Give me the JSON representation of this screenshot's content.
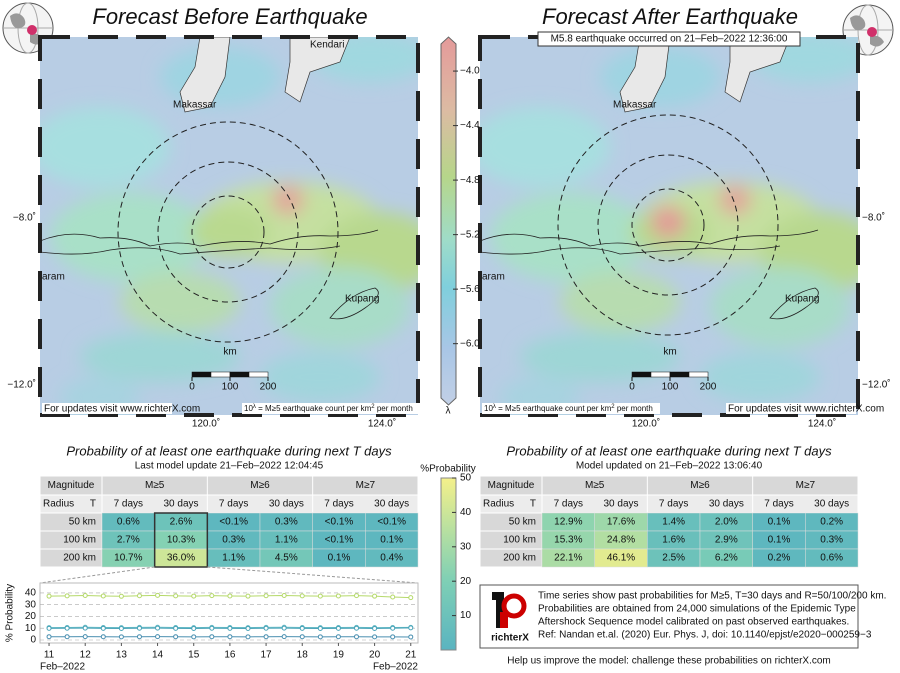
{
  "left_map": {
    "title": "Forecast Before Earthquake",
    "places": [
      "Kendari",
      "Makassar",
      "aram",
      "Kupang"
    ],
    "scale_unit": "km",
    "scale_ticks": [
      0,
      100,
      200
    ],
    "lat_ticks": [
      "−8.0˚",
      "−12.0˚"
    ],
    "lon_ticks": [
      "120.0˚",
      "124.0˚"
    ],
    "url_note": "For updates visit www.richterX.com",
    "formula": [
      "10",
      "λ",
      " = M≥5 earthquake count per km",
      "2",
      " per month"
    ]
  },
  "right_map": {
    "title": "Forecast After Earthquake",
    "banner": "M5.8 earthquake occurred on 21–Feb–2022 12:36:00",
    "places": [
      "Makassar",
      "aram",
      "Kupang"
    ],
    "scale_unit": "km",
    "scale_ticks": [
      0,
      100,
      200
    ],
    "lat_ticks": [
      "−8.0˚",
      "−12.0˚"
    ],
    "lon_ticks": [
      "120.0˚",
      "124.0˚"
    ],
    "url_note": "For updates visit www.richterX.com",
    "formula": [
      "10",
      "λ",
      " = M≥5 earthquake count per km",
      "2",
      " per month"
    ]
  },
  "lambda_colorbar": {
    "label": "λ",
    "range": [
      -6.45,
      -3.75
    ],
    "ticks": [
      {
        "value": -4,
        "label": "−4.0"
      },
      {
        "value": -4.4,
        "label": "−4.4"
      },
      {
        "value": -4.8,
        "label": "−4.8"
      },
      {
        "value": -5.2,
        "label": "−5.2"
      },
      {
        "value": -5.6,
        "label": "−5.6"
      },
      {
        "value": -6,
        "label": "−6.0"
      }
    ]
  },
  "prob_colorbar": {
    "label": "%Probability",
    "range": [
      0,
      50
    ],
    "ticks": [
      10,
      20,
      30,
      40,
      50
    ]
  },
  "left_table": {
    "title": "Probability of at least one earthquake during next T days",
    "subtitle": "Last model update 21–Feb–2022 12:04:45",
    "header": [
      "Magnitude",
      "M≥5",
      "M≥6",
      "M≥7"
    ],
    "subheader": [
      "Radius",
      "T",
      "7 days",
      "30 days",
      "7 days",
      "30 days",
      "7 days",
      "30 days"
    ],
    "rows": [
      [
        "50 km",
        "0.6%",
        "2.6%",
        "<0.1%",
        "0.3%",
        "<0.1%",
        "<0.1%"
      ],
      [
        "100 km",
        "2.7%",
        "10.3%",
        "0.3%",
        "1.1%",
        "<0.1%",
        "0.1%"
      ],
      [
        "200 km",
        "10.7%",
        "36.0%",
        "1.1%",
        "4.5%",
        "0.1%",
        "0.4%"
      ]
    ]
  },
  "right_table": {
    "title": "Probability of at least one earthquake during next T days",
    "subtitle": "Model updated on 21–Feb–2022 13:06:40",
    "header": [
      "Magnitude",
      "M≥5",
      "M≥6",
      "M≥7"
    ],
    "subheader": [
      "Radius",
      "T",
      "7 days",
      "30 days",
      "7 days",
      "30 days",
      "7 days",
      "30 days"
    ],
    "rows": [
      [
        "50 km",
        "12.9%",
        "17.6%",
        "1.4%",
        "2.0%",
        "0.1%",
        "0.2%"
      ],
      [
        "100 km",
        "15.3%",
        "24.8%",
        "1.6%",
        "2.9%",
        "0.1%",
        "0.3%"
      ],
      [
        "200 km",
        "22.1%",
        "46.1%",
        "2.5%",
        "6.2%",
        "0.2%",
        "0.6%"
      ]
    ]
  },
  "chart_data": {
    "type": "line",
    "ylabel": "% Probability",
    "date_labels": [
      "Feb–2022",
      "Feb–2022"
    ],
    "x": [
      11,
      11.5,
      12,
      12.5,
      13,
      13.5,
      14,
      14.5,
      15,
      15.5,
      16,
      16.5,
      17,
      17.5,
      18,
      18.5,
      19,
      19.5,
      20,
      20.5,
      21
    ],
    "xlim": [
      10.75,
      21.2
    ],
    "xticks": [
      11,
      12,
      13,
      14,
      15,
      16,
      17,
      18,
      19,
      20,
      21
    ],
    "ylim": [
      0,
      45
    ],
    "yticks": [
      0,
      10,
      20,
      30,
      40
    ],
    "grid": true,
    "series": [
      {
        "color": "#b5d96a",
        "values": [
          37.2,
          37.5,
          37.8,
          37.4,
          37.1,
          37.6,
          37.9,
          37.5,
          37.3,
          37.7,
          37.4,
          37.2,
          37.6,
          37.8,
          37.5,
          37.3,
          37.4,
          37.7,
          37.2,
          36.5,
          36.0
        ]
      },
      {
        "color": "#5fb8c4",
        "values": [
          10.5,
          10.6,
          10.8,
          10.6,
          10.5,
          10.7,
          10.8,
          10.6,
          10.5,
          10.7,
          10.6,
          10.5,
          10.7,
          10.8,
          10.6,
          10.5,
          10.6,
          10.7,
          10.5,
          10.6,
          10.7
        ]
      },
      {
        "color": "#4aa3b8",
        "values": [
          9.9,
          10.0,
          10.1,
          9.9,
          9.8,
          10.0,
          10.1,
          9.9,
          9.8,
          10.0,
          9.9,
          9.8,
          10.0,
          10.1,
          9.9,
          9.8,
          9.9,
          10.0,
          9.8,
          10.0,
          10.3
        ]
      },
      {
        "color": "#4a8fb0",
        "values": [
          2.8,
          2.8,
          2.9,
          2.8,
          2.7,
          2.8,
          2.9,
          2.8,
          2.7,
          2.8,
          2.8,
          2.7,
          2.8,
          2.9,
          2.8,
          2.7,
          2.8,
          2.8,
          2.7,
          2.7,
          2.6
        ]
      }
    ]
  },
  "info": {
    "logo": "richterX",
    "lines": [
      "Time series show past probabilities for M≥5, T=30 days and R=50/100/200 km.",
      "Probabilities are obtained from 24,000 simulations of the Epidemic Type",
      "Aftershock Sequence model calibrated on past observed earthquakes.",
      "Ref: Nandan et.al. (2020) Eur. Phys. J, doi: 10.1140/epjst/e2020−000259−3"
    ],
    "footer": "Help us improve the model: challenge these probabilities on richterX.com"
  }
}
